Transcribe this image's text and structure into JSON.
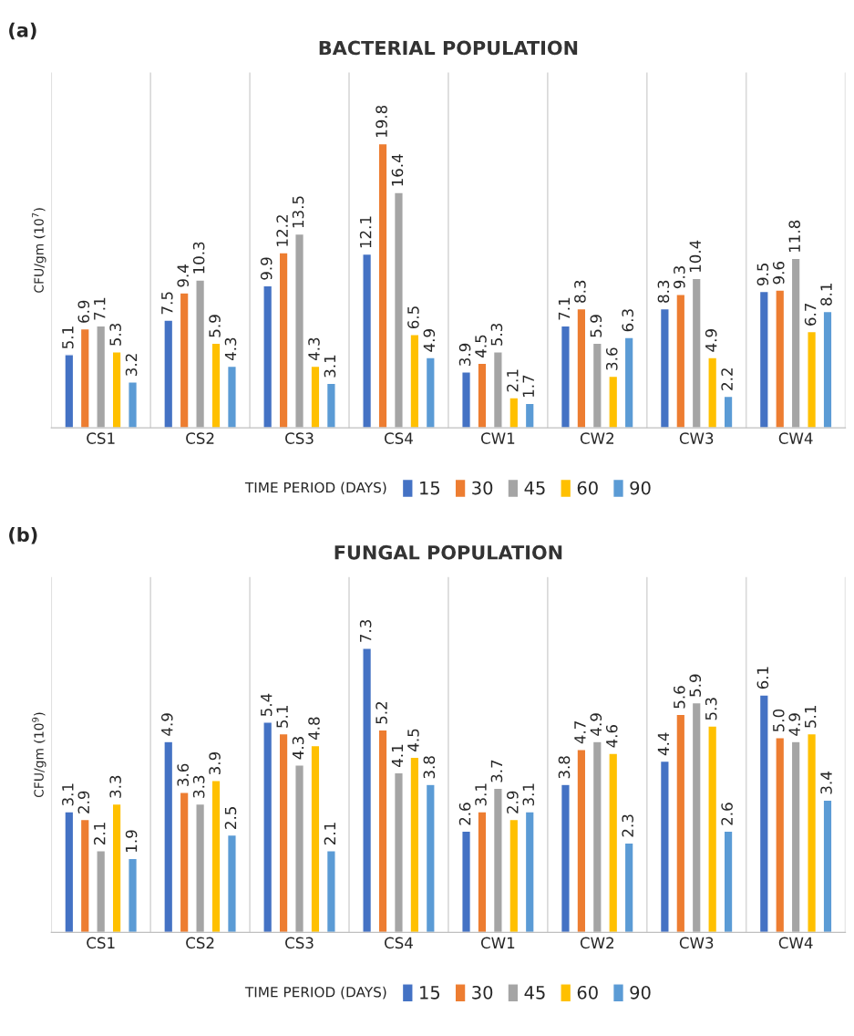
{
  "chart_data": [
    {
      "type": "bar",
      "title": "BACTERIAL POPULATION",
      "ylabel": "CFU/gm (10$^{7}$)",
      "legend_title": "TIME PERIOD (DAYS)",
      "annotations": [
        "(a)"
      ],
      "categories": [
        "CS1",
        "CS2",
        "CS3",
        "CS4",
        "CW1",
        "CW2",
        "CW3",
        "CW4"
      ],
      "series": [
        {
          "name": "15",
          "color": "#4472c4",
          "values": [
            5.1,
            7.5,
            9.9,
            12.1,
            3.9,
            7.1,
            8.3,
            9.5
          ]
        },
        {
          "name": "30",
          "color": "#ed7d31",
          "values": [
            6.9,
            9.4,
            12.2,
            19.8,
            4.5,
            8.3,
            9.3,
            9.6
          ]
        },
        {
          "name": "45",
          "color": "#a5a5a5",
          "values": [
            7.1,
            10.3,
            13.5,
            16.4,
            5.3,
            5.9,
            10.4,
            11.8
          ]
        },
        {
          "name": "60",
          "color": "#ffc000",
          "values": [
            5.3,
            5.9,
            4.3,
            6.5,
            2.1,
            3.6,
            4.9,
            6.7
          ]
        },
        {
          "name": "90",
          "color": "#5b9bd5",
          "values": [
            3.2,
            4.3,
            3.1,
            4.9,
            1.7,
            6.3,
            2.2,
            8.1
          ]
        }
      ],
      "data_labels": true,
      "grid": "x",
      "legend": "bottom",
      "tick_labels": "x"
    },
    {
      "type": "bar",
      "title": "FUNGAL POPULATION",
      "ylabel": "CFU/gm (10$^{9}$)",
      "legend_title": "TIME PERIOD (DAYS)",
      "annotations": [
        "(b)"
      ],
      "categories": [
        "CS1",
        "CS2",
        "CS3",
        "CS4",
        "CW1",
        "CW2",
        "CW3",
        "CW4"
      ],
      "series": [
        {
          "name": "15",
          "color": "#4472c4",
          "values": [
            3.1,
            4.9,
            5.4,
            7.3,
            2.6,
            3.8,
            4.4,
            6.1
          ]
        },
        {
          "name": "30",
          "color": "#ed7d31",
          "values": [
            2.9,
            3.6,
            5.1,
            5.2,
            3.1,
            4.7,
            5.6,
            5.0
          ],
          "value_labels": [
            "2.9",
            "3.6",
            "5.1",
            "5.2",
            "3.1",
            "4.7",
            "5.6",
            "5.0"
          ]
        },
        {
          "name": "45",
          "color": "#a5a5a5",
          "values": [
            2.1,
            3.3,
            4.3,
            4.1,
            3.7,
            4.9,
            5.9,
            4.9
          ]
        },
        {
          "name": "60",
          "color": "#ffc000",
          "values": [
            3.3,
            3.9,
            4.8,
            4.5,
            2.9,
            4.6,
            5.3,
            5.1
          ]
        },
        {
          "name": "90",
          "color": "#5b9bd5",
          "values": [
            1.9,
            2.5,
            2.1,
            3.8,
            3.1,
            2.3,
            2.6,
            3.4
          ]
        }
      ],
      "data_labels": true,
      "grid": "x",
      "legend": "bottom",
      "tick_labels": "x"
    }
  ]
}
